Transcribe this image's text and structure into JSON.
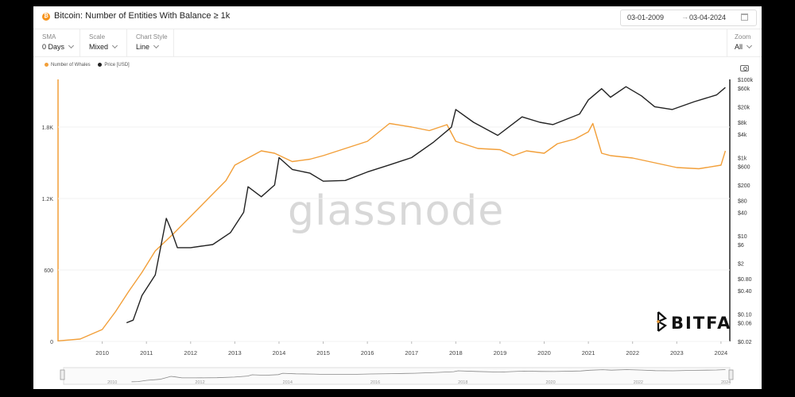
{
  "header": {
    "title": "Bitcoin: Number of Entities With Balance ≥ 1k",
    "date_from": "03-01-2009",
    "date_to": "03-04-2024",
    "arrow": "→"
  },
  "controls": [
    {
      "label": "SMA",
      "value": "0 Days"
    },
    {
      "label": "Scale",
      "value": "Mixed"
    },
    {
      "label": "Chart Style",
      "value": "Line"
    }
  ],
  "zoom": {
    "label": "Zoom",
    "value": "All"
  },
  "watermark": "glassnode",
  "brand": "BITFA",
  "colors": {
    "whales": "#f29f39",
    "price": "#222222"
  },
  "chart_data": {
    "type": "line",
    "legend": [
      "Number of Whales",
      "Price [USD]"
    ],
    "x_ticks": [
      "2010",
      "2011",
      "2012",
      "2013",
      "2014",
      "2015",
      "2016",
      "2017",
      "2018",
      "2019",
      "2020",
      "2021",
      "2022",
      "2023",
      "2024"
    ],
    "y_left_ticks": [
      "0",
      "600",
      "1.2K",
      "1.8K"
    ],
    "y_right_ticks": [
      "$0.02",
      "$0.06",
      "$0.10",
      "$0.40",
      "$0.80",
      "$2",
      "$6",
      "$10",
      "$40",
      "$80",
      "$200",
      "$600",
      "$1k",
      "$4k",
      "$8k",
      "$20k",
      "$60k",
      "$100k"
    ],
    "ylim_left": [
      0,
      2200
    ],
    "navigator_ticks": [
      "2010",
      "2012",
      "2014",
      "2016",
      "2018",
      "2020",
      "2022",
      "2024"
    ],
    "series": [
      {
        "name": "Number of Whales",
        "axis": "left",
        "x": [
          2009.0,
          2009.5,
          2010.0,
          2010.3,
          2010.6,
          2010.9,
          2011.2,
          2011.6,
          2012.0,
          2012.4,
          2012.8,
          2013.0,
          2013.3,
          2013.6,
          2013.9,
          2014.3,
          2014.7,
          2015.0,
          2015.5,
          2016.0,
          2016.5,
          2017.0,
          2017.4,
          2017.8,
          2018.0,
          2018.5,
          2019.0,
          2019.3,
          2019.6,
          2020.0,
          2020.3,
          2020.7,
          2021.0,
          2021.1,
          2021.3,
          2021.5,
          2022.0,
          2022.5,
          2023.0,
          2023.5,
          2024.0,
          2024.1
        ],
        "y": [
          5,
          20,
          100,
          250,
          420,
          580,
          760,
          900,
          1050,
          1200,
          1350,
          1480,
          1540,
          1600,
          1580,
          1510,
          1530,
          1560,
          1620,
          1680,
          1830,
          1800,
          1770,
          1820,
          1680,
          1620,
          1610,
          1560,
          1600,
          1580,
          1660,
          1700,
          1760,
          1830,
          1580,
          1560,
          1540,
          1500,
          1460,
          1450,
          1480,
          1600
        ]
      },
      {
        "name": "Price [USD]",
        "axis": "right",
        "x": [
          2010.55,
          2010.7,
          2010.9,
          2011.2,
          2011.45,
          2011.55,
          2011.7,
          2012.0,
          2012.5,
          2012.9,
          2013.2,
          2013.3,
          2013.6,
          2013.9,
          2014.0,
          2014.3,
          2014.7,
          2015.0,
          2015.5,
          2016.0,
          2016.5,
          2017.0,
          2017.5,
          2017.9,
          2018.0,
          2018.4,
          2018.95,
          2019.5,
          2019.9,
          2020.2,
          2020.8,
          2021.0,
          2021.3,
          2021.5,
          2021.85,
          2022.2,
          2022.5,
          2022.9,
          2023.4,
          2023.9,
          2024.1
        ],
        "y": [
          0.06,
          0.07,
          0.3,
          1,
          28,
          15,
          5,
          5,
          6,
          12,
          40,
          180,
          100,
          200,
          1000,
          500,
          400,
          250,
          260,
          430,
          650,
          1000,
          2500,
          6000,
          17000,
          8000,
          3700,
          11000,
          8000,
          7000,
          13000,
          30000,
          58000,
          35000,
          65000,
          38000,
          20000,
          17000,
          27000,
          40000,
          62000
        ]
      }
    ]
  }
}
